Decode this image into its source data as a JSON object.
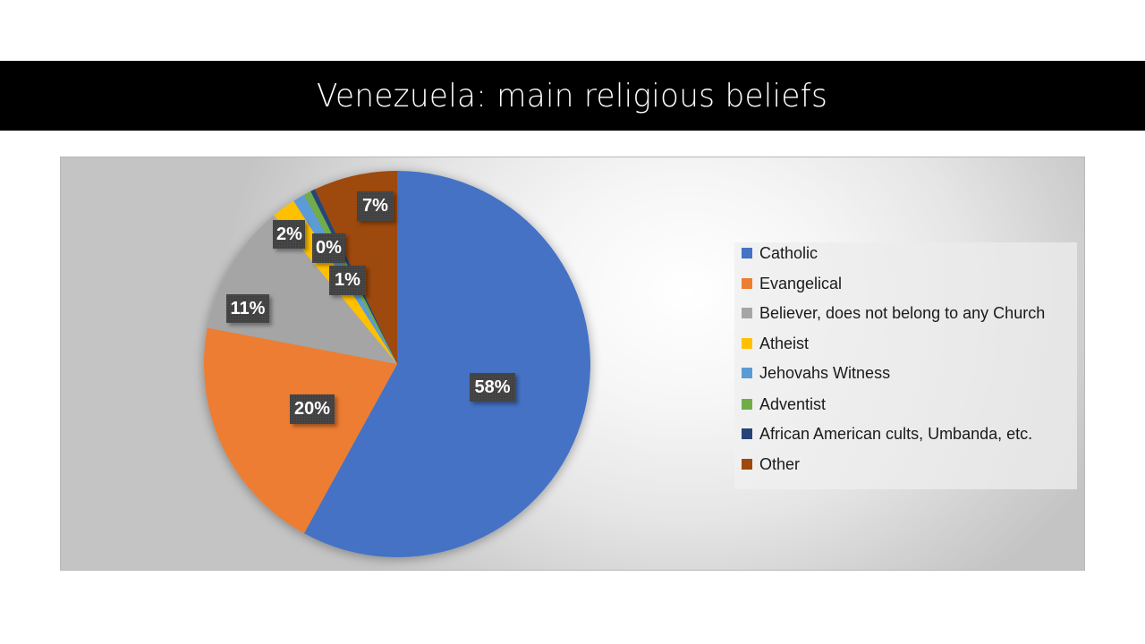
{
  "slide": {
    "title": "Venezuela: main religious beliefs"
  },
  "chart_data": {
    "type": "pie",
    "title": "Venezuela: main religious beliefs",
    "categories": [
      "Catholic",
      "Evangelical",
      "Believer, does not belong to any Church",
      "Atheist",
      "Jehovahs Witness",
      "Adventist",
      "African American cults, Umbanda, etc.",
      "Other"
    ],
    "values": [
      58,
      20,
      11,
      2,
      1,
      0.6,
      0.4,
      7
    ],
    "data_labels": [
      "58%",
      "20%",
      "11%",
      "2%",
      "1%",
      "",
      "0%",
      "7%"
    ],
    "colors": [
      "#4472C4",
      "#ED7D31",
      "#A5A5A5",
      "#FFC000",
      "#5B9BD5",
      "#70AD47",
      "#264478",
      "#9E480E"
    ],
    "start_angle_deg": 0,
    "direction": "clockwise",
    "legend_position": "right",
    "grid": false
  },
  "labels": {
    "catholic": "58%",
    "evangelical": "20%",
    "believer": "11%",
    "atheist": "2%",
    "zero": "0%",
    "one": "1%",
    "other": "7%"
  },
  "legend": {
    "items": [
      {
        "label": "Catholic",
        "color": "#4472C4"
      },
      {
        "label": "Evangelical",
        "color": "#ED7D31"
      },
      {
        "label": "Believer, does not belong to any Church",
        "color": "#A5A5A5"
      },
      {
        "label": "Atheist",
        "color": "#FFC000"
      },
      {
        "label": "Jehovahs Witness",
        "color": "#5B9BD5"
      },
      {
        "label": "Adventist",
        "color": "#70AD47"
      },
      {
        "label": "African American cults, Umbanda, etc.",
        "color": "#264478"
      },
      {
        "label": "Other",
        "color": "#9E480E"
      }
    ]
  }
}
